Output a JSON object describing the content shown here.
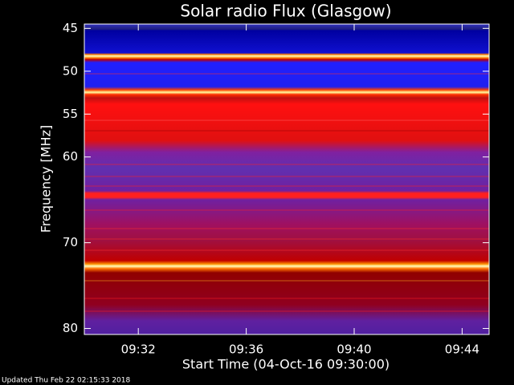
{
  "chart_data": {
    "type": "spectrogram",
    "title": "Solar radio Flux (Glasgow)",
    "y_label": "Frequency [MHz]",
    "x_label": "Start Time (04-Oct-16 09:30:00)",
    "footer": "Updated Thu Feb 22 02:15:33 2018",
    "ylim": [
      44.5,
      80.7
    ],
    "y_inverted": true,
    "yticks": [
      45,
      50,
      55,
      60,
      70,
      80
    ],
    "xlim": [
      570,
      585
    ],
    "xticks": [
      {
        "value": 572,
        "label": "09:32"
      },
      {
        "value": 576,
        "label": "09:36"
      },
      {
        "value": 580,
        "label": "09:40"
      },
      {
        "value": 584,
        "label": "09:44"
      }
    ]
  }
}
